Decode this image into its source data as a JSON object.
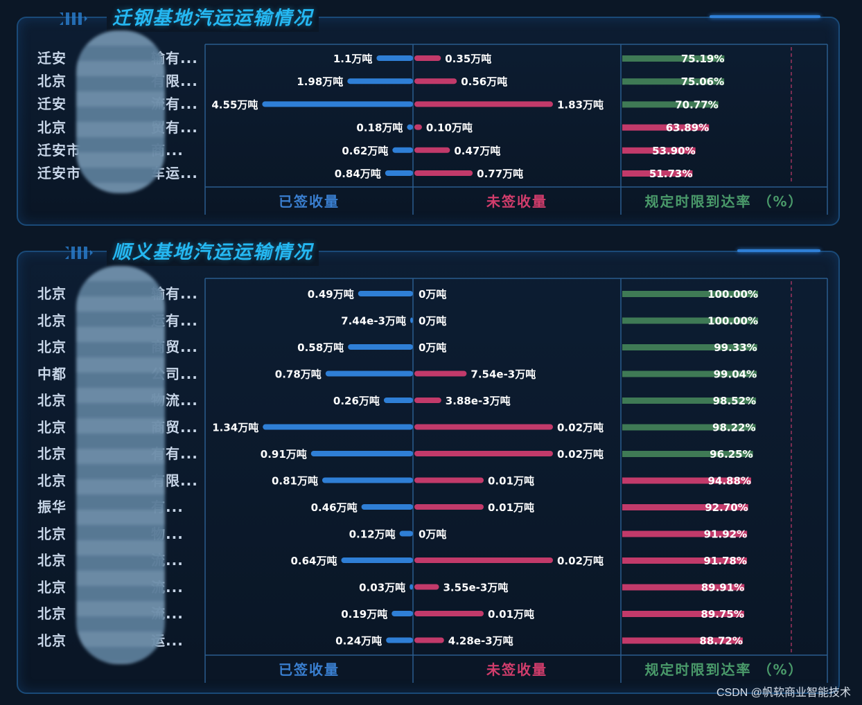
{
  "colors": {
    "signed": "#2f7fd6",
    "unsigned": "#c23a6a",
    "rate_high": "#3f7a55",
    "rate_low": "#c23a6a",
    "title": "#25b8f2",
    "footer_signed": "#3a7fd0",
    "footer_unsigned": "#d23d6c",
    "footer_rate": "#4a9a6a"
  },
  "panels": [
    {
      "title": "迁钢基地汽运运输情况",
      "footer": {
        "signed": "已签收量",
        "unsigned": "未签收量",
        "rate": "规定时限到达率 （%）"
      },
      "rows": [
        {
          "label": "迁安",
          "label_end": "输有...",
          "signed": 1.1,
          "signed_text": "1.1万吨",
          "unsigned": 0.35,
          "unsigned_text": "0.35万吨",
          "rate": 75.19,
          "rate_text": "75.19%"
        },
        {
          "label": "北京",
          "label_end": "有限...",
          "signed": 1.98,
          "signed_text": "1.98万吨",
          "unsigned": 0.56,
          "unsigned_text": "0.56万吨",
          "rate": 75.06,
          "rate_text": "75.06%"
        },
        {
          "label": "迁安",
          "label_end": "流有...",
          "signed": 4.55,
          "signed_text": "4.55万吨",
          "unsigned": 1.83,
          "unsigned_text": "1.83万吨",
          "rate": 70.77,
          "rate_text": "70.77%"
        },
        {
          "label": "北京",
          "label_end": "贸有...",
          "signed": 0.18,
          "signed_text": "0.18万吨",
          "unsigned": 0.1,
          "unsigned_text": "0.10万吨",
          "rate": 63.89,
          "rate_text": "63.89%"
        },
        {
          "label": "迁安市",
          "label_end": "商...",
          "signed": 0.62,
          "signed_text": "0.62万吨",
          "unsigned": 0.47,
          "unsigned_text": "0.47万吨",
          "rate": 53.9,
          "rate_text": "53.90%"
        },
        {
          "label": "迁安市",
          "label_end": "车运...",
          "signed": 0.84,
          "signed_text": "0.84万吨",
          "unsigned": 0.77,
          "unsigned_text": "0.77万吨",
          "rate": 51.73,
          "rate_text": "51.73%"
        }
      ]
    },
    {
      "title": "顺义基地汽运运输情况",
      "footer": {
        "signed": "已签收量",
        "unsigned": "未签收量",
        "rate": "规定时限到达率 （%）"
      },
      "rows": [
        {
          "label": "北京",
          "label_end": "输有...",
          "signed": 0.49,
          "signed_text": "0.49万吨",
          "unsigned": 0,
          "unsigned_text": "0万吨",
          "rate": 100.0,
          "rate_text": "100.00%"
        },
        {
          "label": "北京",
          "label_end": "运有...",
          "signed": 0.00744,
          "signed_text": "7.44e-3万吨",
          "unsigned": 0,
          "unsigned_text": "0万吨",
          "rate": 100.0,
          "rate_text": "100.00%"
        },
        {
          "label": "北京",
          "label_end": "商贸...",
          "signed": 0.58,
          "signed_text": "0.58万吨",
          "unsigned": 0,
          "unsigned_text": "0万吨",
          "rate": 99.33,
          "rate_text": "99.33%"
        },
        {
          "label": "中都",
          "label_end": "公司...",
          "signed": 0.78,
          "signed_text": "0.78万吨",
          "unsigned": 0.00754,
          "unsigned_text": "7.54e-3万吨",
          "rate": 99.04,
          "rate_text": "99.04%"
        },
        {
          "label": "北京",
          "label_end": "物流...",
          "signed": 0.26,
          "signed_text": "0.26万吨",
          "unsigned": 0.00388,
          "unsigned_text": "3.88e-3万吨",
          "rate": 98.52,
          "rate_text": "98.52%"
        },
        {
          "label": "北京",
          "label_end": "商贸...",
          "signed": 1.34,
          "signed_text": "1.34万吨",
          "unsigned": 0.02,
          "unsigned_text": "0.02万吨",
          "rate": 98.22,
          "rate_text": "98.22%"
        },
        {
          "label": "北京",
          "label_end": "有有...",
          "signed": 0.91,
          "signed_text": "0.91万吨",
          "unsigned": 0.02,
          "unsigned_text": "0.02万吨",
          "rate": 96.25,
          "rate_text": "96.25%"
        },
        {
          "label": "北京",
          "label_end": "有限...",
          "signed": 0.81,
          "signed_text": "0.81万吨",
          "unsigned": 0.01,
          "unsigned_text": "0.01万吨",
          "rate": 94.88,
          "rate_text": "94.88%"
        },
        {
          "label": "振华",
          "label_end": "有...",
          "signed": 0.46,
          "signed_text": "0.46万吨",
          "unsigned": 0.01,
          "unsigned_text": "0.01万吨",
          "rate": 92.7,
          "rate_text": "92.70%"
        },
        {
          "label": "北京",
          "label_end": "物...",
          "signed": 0.12,
          "signed_text": "0.12万吨",
          "unsigned": 0,
          "unsigned_text": "0万吨",
          "rate": 91.92,
          "rate_text": "91.92%"
        },
        {
          "label": "北京",
          "label_end": "流...",
          "signed": 0.64,
          "signed_text": "0.64万吨",
          "unsigned": 0.02,
          "unsigned_text": "0.02万吨",
          "rate": 91.78,
          "rate_text": "91.78%"
        },
        {
          "label": "北京",
          "label_end": "流...",
          "signed": 0.03,
          "signed_text": "0.03万吨",
          "unsigned": 0.00355,
          "unsigned_text": "3.55e-3万吨",
          "rate": 89.91,
          "rate_text": "89.91%"
        },
        {
          "label": "北京",
          "label_end": "流...",
          "signed": 0.19,
          "signed_text": "0.19万吨",
          "unsigned": 0.01,
          "unsigned_text": "0.01万吨",
          "rate": 89.75,
          "rate_text": "89.75%"
        },
        {
          "label": "北京",
          "label_end": "运...",
          "signed": 0.24,
          "signed_text": "0.24万吨",
          "unsigned": 0.00428,
          "unsigned_text": "4.28e-3万吨",
          "rate": 88.72,
          "rate_text": "88.72%"
        }
      ]
    }
  ],
  "chart_data": [
    {
      "type": "bar",
      "title": "迁钢基地汽运运输情况",
      "categories": [
        "迁安…输有...",
        "北京…有限...",
        "迁安…流有...",
        "北京…贸有...",
        "迁安市…商...",
        "迁安市…车运..."
      ],
      "series": [
        {
          "name": "已签收量",
          "unit": "万吨",
          "values": [
            1.1,
            1.98,
            4.55,
            0.18,
            0.62,
            0.84
          ]
        },
        {
          "name": "未签收量",
          "unit": "万吨",
          "values": [
            0.35,
            0.56,
            1.83,
            0.1,
            0.47,
            0.77
          ]
        },
        {
          "name": "规定时限到达率",
          "unit": "%",
          "values": [
            75.19,
            75.06,
            70.77,
            63.89,
            53.9,
            51.73
          ]
        }
      ]
    },
    {
      "type": "bar",
      "title": "顺义基地汽运运输情况",
      "categories": [
        "北京…输有...",
        "北京…运有...",
        "北京…商贸...",
        "中都…公司...",
        "北京…物流...",
        "北京…商贸...",
        "北京…有有...",
        "北京…有限...",
        "振华…有...",
        "北京…物...",
        "北京…流...",
        "北京…流...",
        "北京…流...",
        "北京…运..."
      ],
      "series": [
        {
          "name": "已签收量",
          "unit": "万吨",
          "values": [
            0.49,
            0.00744,
            0.58,
            0.78,
            0.26,
            1.34,
            0.91,
            0.81,
            0.46,
            0.12,
            0.64,
            0.03,
            0.19,
            0.24
          ]
        },
        {
          "name": "未签收量",
          "unit": "万吨",
          "values": [
            0,
            0,
            0,
            0.00754,
            0.00388,
            0.02,
            0.02,
            0.01,
            0.01,
            0,
            0.02,
            0.00355,
            0.01,
            0.00428
          ]
        },
        {
          "name": "规定时限到达率",
          "unit": "%",
          "values": [
            100.0,
            100.0,
            99.33,
            99.04,
            98.52,
            98.22,
            96.25,
            94.88,
            92.7,
            91.92,
            91.78,
            89.91,
            89.75,
            88.72
          ]
        }
      ]
    }
  ],
  "watermark": "CSDN @帆软商业智能技术"
}
